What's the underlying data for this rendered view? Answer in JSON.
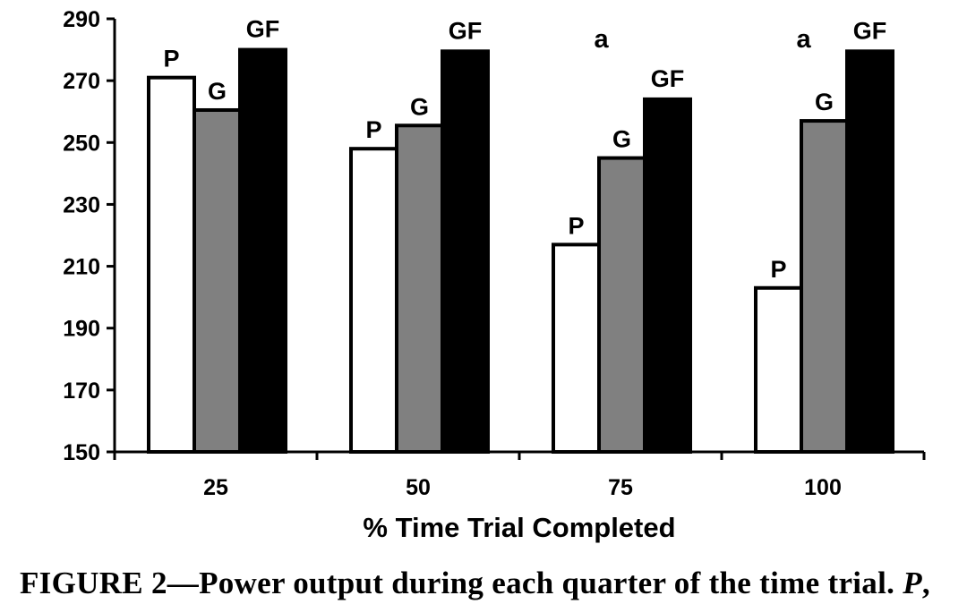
{
  "chart_data": {
    "type": "bar",
    "categories": [
      "25",
      "50",
      "75",
      "100"
    ],
    "series": [
      {
        "name": "P",
        "color": "#ffffff",
        "values": [
          271,
          248,
          217,
          203
        ]
      },
      {
        "name": "G",
        "color": "#808080",
        "values": [
          260.5,
          255.5,
          245,
          257
        ]
      },
      {
        "name": "GF",
        "color": "#000000",
        "values": [
          280,
          279.5,
          264,
          279.5
        ]
      }
    ],
    "bar_labels": [
      "P",
      "G",
      "GF"
    ],
    "annotations": [
      {
        "category": "75",
        "text": "a"
      },
      {
        "category": "100",
        "text": "a"
      }
    ],
    "xlabel": "% Time Trial Completed",
    "ylabel": "",
    "ylim": [
      150,
      290
    ],
    "yticks": [
      150,
      170,
      190,
      210,
      230,
      250,
      270,
      290
    ],
    "grid": false,
    "legend": "none"
  },
  "caption": {
    "text": "FIGURE 2—Power output during each quarter of the time trial. ",
    "italic": "P",
    "trail": ","
  }
}
